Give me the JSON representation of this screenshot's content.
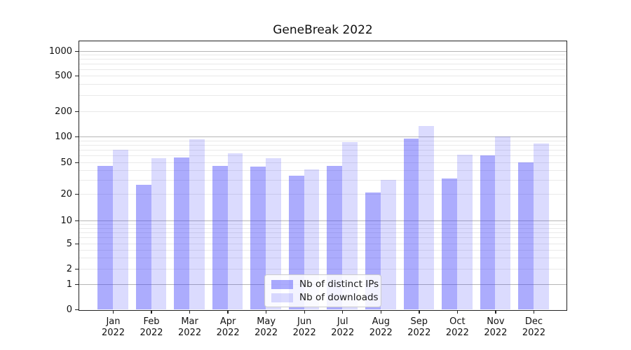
{
  "title": "GeneBreak 2022",
  "chart_data": {
    "type": "bar",
    "title": "GeneBreak 2022",
    "categories": [
      "Jan",
      "Feb",
      "Mar",
      "Apr",
      "May",
      "Jun",
      "Jul",
      "Aug",
      "Sep",
      "Oct",
      "Nov",
      "Dec"
    ],
    "year_label": "2022",
    "series": [
      {
        "name": "Nb of distinct IPs",
        "values": [
          45,
          26,
          57,
          45,
          44,
          34,
          45,
          21,
          95,
          31,
          60,
          50
        ]
      },
      {
        "name": "Nb of downloads",
        "values": [
          70,
          56,
          93,
          64,
          56,
          41,
          86,
          30,
          134,
          61,
          100,
          83
        ]
      }
    ],
    "xlabel": "",
    "ylabel": "",
    "yscale": "symlog",
    "ylim": [
      0,
      1300
    ],
    "y_ticks": [
      0,
      1,
      2,
      5,
      10,
      20,
      50,
      100,
      200,
      500,
      1000
    ],
    "y_major_gridlines": [
      1,
      10,
      100,
      1000
    ],
    "y_minor_gridlines": [
      2,
      3,
      4,
      5,
      6,
      7,
      8,
      9,
      20,
      30,
      40,
      50,
      60,
      70,
      80,
      90,
      200,
      300,
      400,
      500,
      600,
      700,
      800,
      900
    ],
    "grid": true,
    "legend_position": "bottom-center"
  },
  "colors": {
    "bar_ips": "rgba(62,62,250,0.43)",
    "bar_downloads": "rgba(62,62,250,0.19)",
    "grid_major": "#b5b5b5",
    "grid_minor": "#e9e9e9",
    "axis": "#222222",
    "legend_border": "#cccccc",
    "legend_bg": "rgba(255,255,255,0.85)"
  }
}
